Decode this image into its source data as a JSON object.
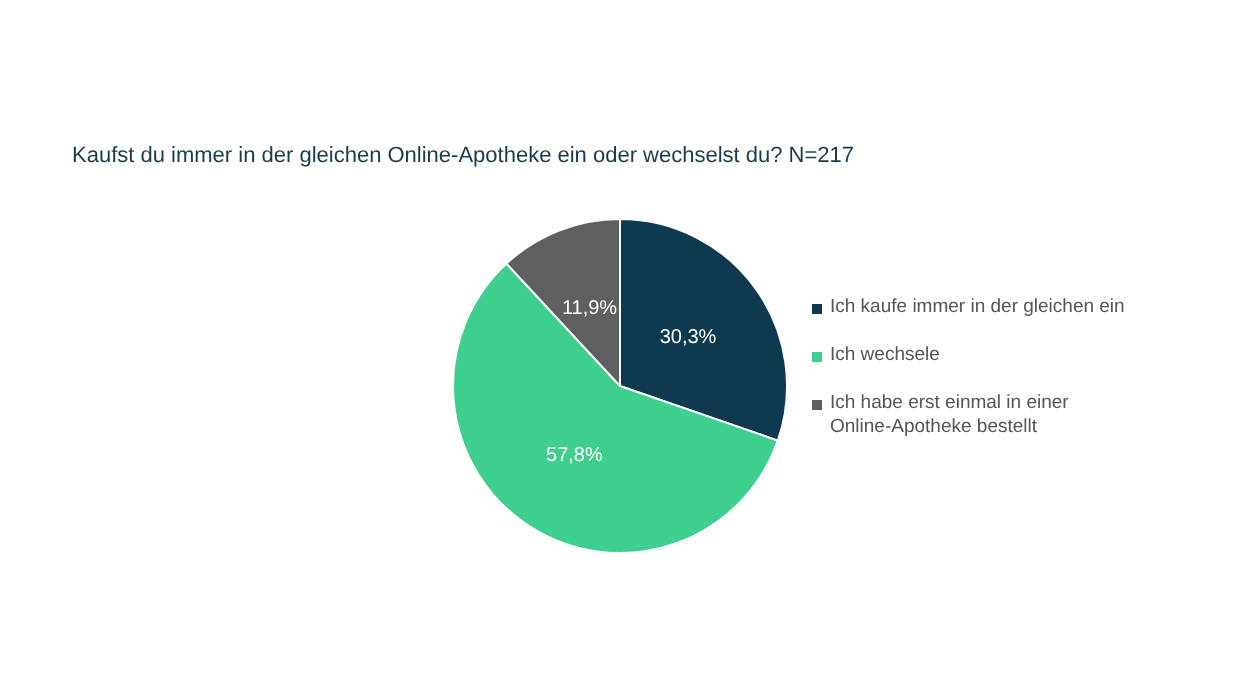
{
  "chart_data": {
    "type": "pie",
    "title": "Kaufst du immer in der gleichen Online-Apotheke ein oder wechselst du? N=217",
    "categories": [
      "Ich kaufe immer in der gleichen ein",
      "Ich wechsele",
      "Ich habe erst einmal in einer Online-Apotheke bestellt"
    ],
    "values": [
      30.3,
      57.8,
      11.9
    ],
    "colors": [
      "#0d3a4e",
      "#3ecf8e",
      "#5e5f61"
    ],
    "value_labels": [
      "30,3%",
      "57,8%",
      "11,9%"
    ],
    "legend": "right"
  }
}
